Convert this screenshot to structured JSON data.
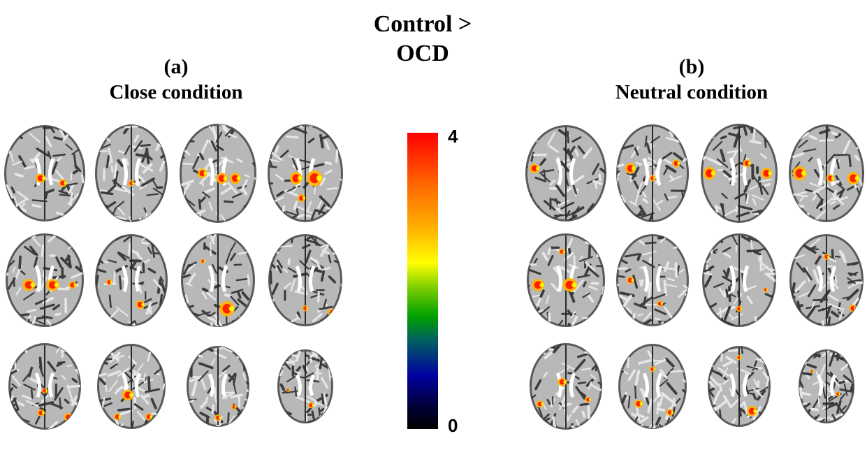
{
  "title_line1": "Control >",
  "title_line2": "OCD",
  "panels": [
    {
      "letter": "(a)",
      "condition": "Close condition"
    },
    {
      "letter": "(b)",
      "condition": "Neutral condition"
    }
  ],
  "colorbar": {
    "max": "4",
    "min": "0"
  },
  "colors": {
    "hot": "#ff2000",
    "warm": "#ffb400",
    "yellow": "#ffff00"
  }
}
